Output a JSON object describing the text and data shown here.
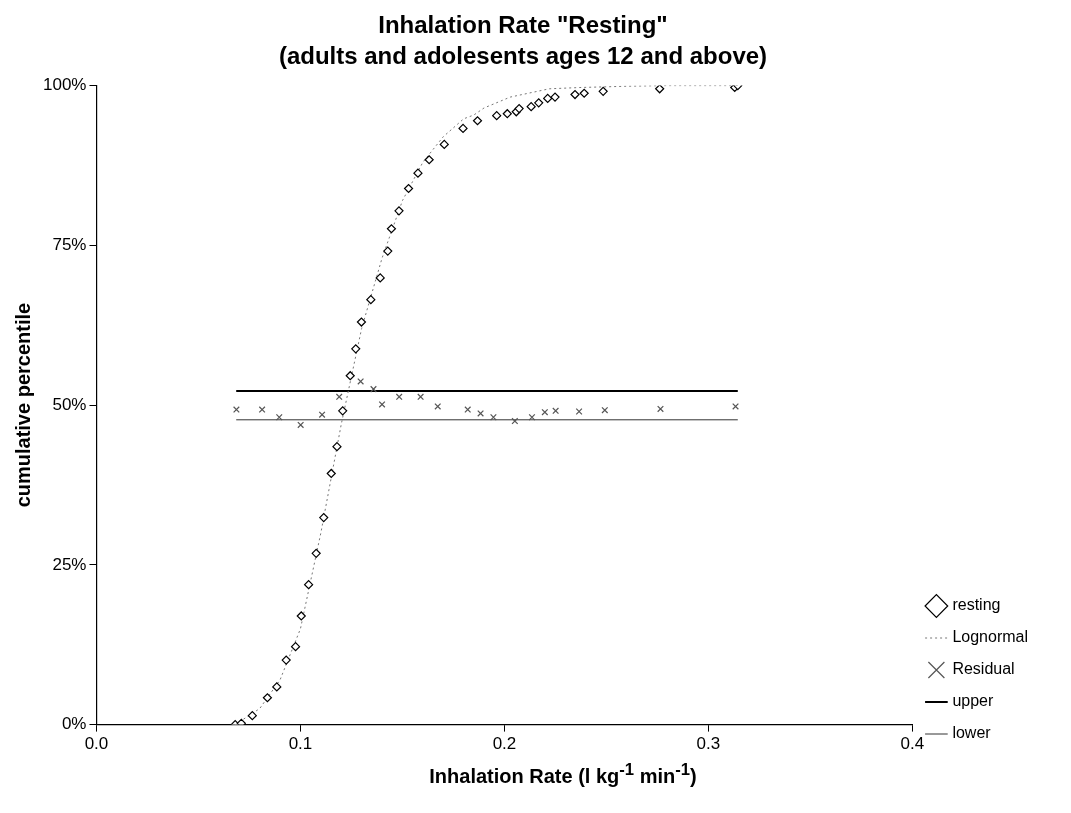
{
  "chart_data": {
    "type": "scatter",
    "title": "Inhalation Rate \"Resting\"",
    "subtitle": "(adults and adolesents ages 12 and above)",
    "xlabel": "Inhalation Rate (l kg$^{-1}$ min$^{-1}$)",
    "ylabel": "cumulative percentile",
    "xlim": [
      0,
      0.4
    ],
    "xticks": [
      {
        "value": 0,
        "label": "0.0"
      },
      0.1,
      0.2,
      0.3,
      0.4
    ],
    "ylim": [
      0,
      100
    ],
    "yticks": [
      {
        "value": 0,
        "label": "0%"
      },
      {
        "value": 25,
        "label": "25%"
      },
      {
        "value": 50,
        "label": "50%"
      },
      {
        "value": 75,
        "label": "75%"
      },
      {
        "value": 100,
        "label": "100%"
      }
    ],
    "grid": false,
    "legend": "bottom right",
    "series": [
      {
        "name": "resting",
        "marker": "diamond",
        "color": "#000000",
        "x": [
          0.068,
          0.071,
          0.0764,
          0.0838,
          0.0884,
          0.093,
          0.0976,
          0.1004,
          0.104,
          0.1077,
          0.1114,
          0.1151,
          0.1179,
          0.1207,
          0.1244,
          0.1271,
          0.1299,
          0.1345,
          0.1391,
          0.1428,
          0.1446,
          0.1483,
          0.153,
          0.1576,
          0.1631,
          0.1705,
          0.1797,
          0.1868,
          0.1962,
          0.2014,
          0.2058,
          0.2072,
          0.2131,
          0.2168,
          0.2212,
          0.2248,
          0.2346,
          0.2391,
          0.2484,
          0.2761,
          0.3129,
          0.3144
        ],
        "values": [
          0,
          0.2,
          1.4,
          4.2,
          5.9,
          10.1,
          12.2,
          17,
          21.9,
          26.8,
          32.4,
          39.3,
          43.5,
          49.1,
          54.6,
          58.8,
          63,
          66.5,
          69.9,
          74.1,
          77.6,
          80.4,
          83.9,
          86.3,
          88.4,
          90.8,
          93.3,
          94.5,
          95.3,
          95.6,
          95.9,
          96.4,
          96.7,
          97.3,
          98,
          98.2,
          98.6,
          98.8,
          99.1,
          99.5,
          99.7,
          100
        ]
      },
      {
        "name": "Lognormal",
        "type": "line",
        "line_style": "dotted",
        "color": "#777777",
        "x": [
          0.068,
          0.08,
          0.09,
          0.1,
          0.11,
          0.12,
          0.13,
          0.14,
          0.15,
          0.16,
          0.17,
          0.18,
          0.185,
          0.19,
          0.2028,
          0.222,
          0.237,
          0.26,
          0.28,
          0.314
        ],
        "values": [
          0,
          2.5,
          7,
          15,
          30,
          47,
          62,
          73,
          82,
          88,
          92,
          94.8,
          95.4,
          96.5,
          98.2,
          99.5,
          99.7,
          99.9,
          100,
          100
        ]
      },
      {
        "name": "Residual",
        "marker": "cross",
        "color": "#555555",
        "x": [
          0.0686,
          0.0812,
          0.0896,
          0.1001,
          0.1106,
          0.119,
          0.1295,
          0.1358,
          0.14,
          0.1484,
          0.1589,
          0.1673,
          0.182,
          0.1883,
          0.1946,
          0.2051,
          0.2135,
          0.2198,
          0.2251,
          0.2366,
          0.2492,
          0.2765,
          0.3133
        ],
        "values": [
          49.3,
          49.3,
          48.1,
          46.9,
          48.5,
          51.3,
          53.7,
          52.5,
          50.1,
          51.3,
          51.3,
          49.8,
          49.3,
          48.7,
          48.1,
          47.5,
          48.1,
          48.9,
          49.1,
          49,
          49.2,
          49.4,
          49.8
        ]
      },
      {
        "name": "upper",
        "type": "line",
        "line_style": "solid",
        "color": "#000000",
        "x": [
          0.0685,
          0.3144
        ],
        "values": [
          52.2,
          52.2
        ]
      },
      {
        "name": "lower",
        "type": "line",
        "line_style": "solid",
        "color": "#333333",
        "x": [
          0.0685,
          0.3144
        ],
        "values": [
          47.7,
          47.7
        ]
      }
    ]
  }
}
